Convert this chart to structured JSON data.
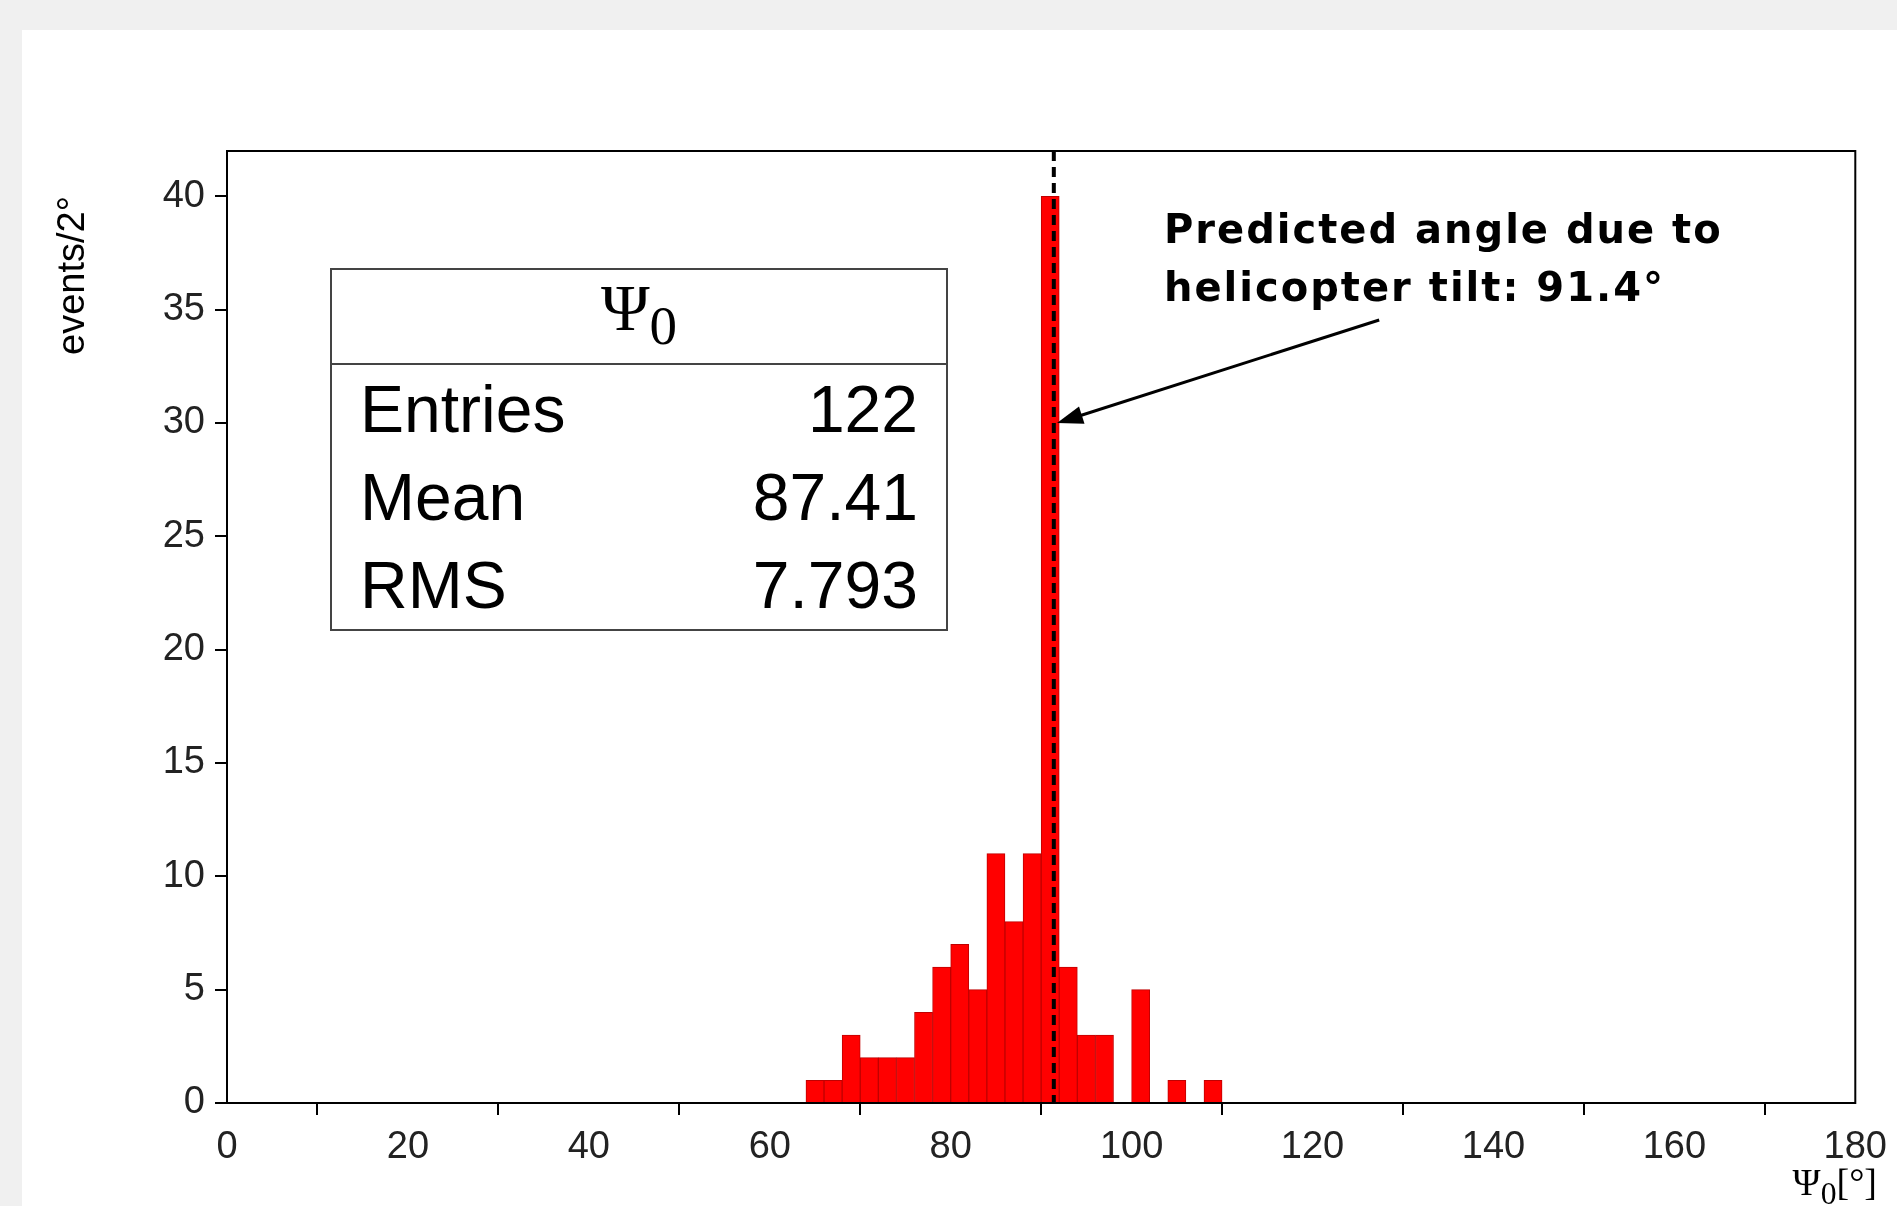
{
  "chart_data": {
    "type": "histogram",
    "xlabel": "Ψ$_{0}$[°]",
    "ylabel": "events/2°",
    "bins": [
      64,
      66,
      68,
      70,
      72,
      74,
      76,
      78,
      80,
      82,
      84,
      86,
      88,
      90,
      92,
      94,
      96,
      98,
      100,
      102,
      104,
      106,
      108,
      110
    ],
    "values": [
      1,
      1,
      3,
      2,
      2,
      2,
      4,
      6,
      7,
      5,
      11,
      8,
      11,
      40,
      6,
      3,
      3,
      0,
      5,
      0,
      1,
      0,
      1
    ],
    "color": "#ff0000",
    "xlim": [
      0,
      180
    ],
    "xticks": [
      0,
      20,
      40,
      60,
      80,
      100,
      120,
      140,
      160,
      180
    ],
    "ylim": [
      0,
      42
    ],
    "yticks": [
      0,
      5,
      10,
      15,
      20,
      25,
      30,
      35,
      40
    ],
    "grid": false,
    "legend": false,
    "ref_lines": [
      {
        "axis": "x",
        "value": 91.4,
        "color": "#000000",
        "line_style": "dashed"
      }
    ],
    "annotations": [
      "Ψ$_{0}$",
      "Entries",
      "122",
      "Mean",
      "87.41",
      "RMS",
      "7.793",
      "Predicted angle due to helicopter tilt: 91.4°"
    ]
  }
}
